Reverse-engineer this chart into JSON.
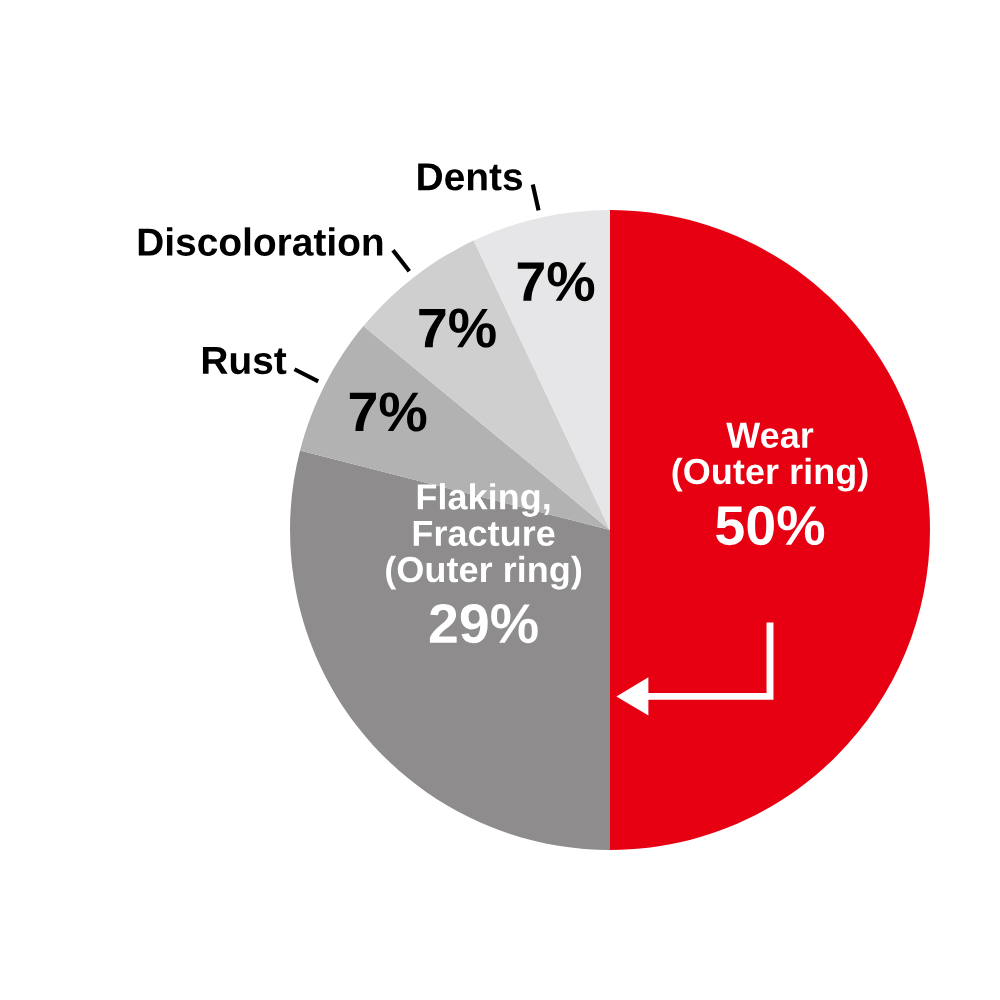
{
  "chart_data": {
    "type": "pie",
    "categories": [
      "Wear\n(Outer ring)",
      "Flaking,\nFracture\n(Outer ring)",
      "Rust",
      "Discoloration",
      "Dents"
    ],
    "values": [
      50,
      29,
      7,
      7,
      7
    ],
    "value_labels": [
      "50%",
      "29%",
      "7%",
      "7%",
      "7%"
    ],
    "colors": [
      "#e60012",
      "#8e8c8c",
      "#b3b2b2",
      "#cfcfcf",
      "#e6e6e8"
    ],
    "legend": false
  }
}
